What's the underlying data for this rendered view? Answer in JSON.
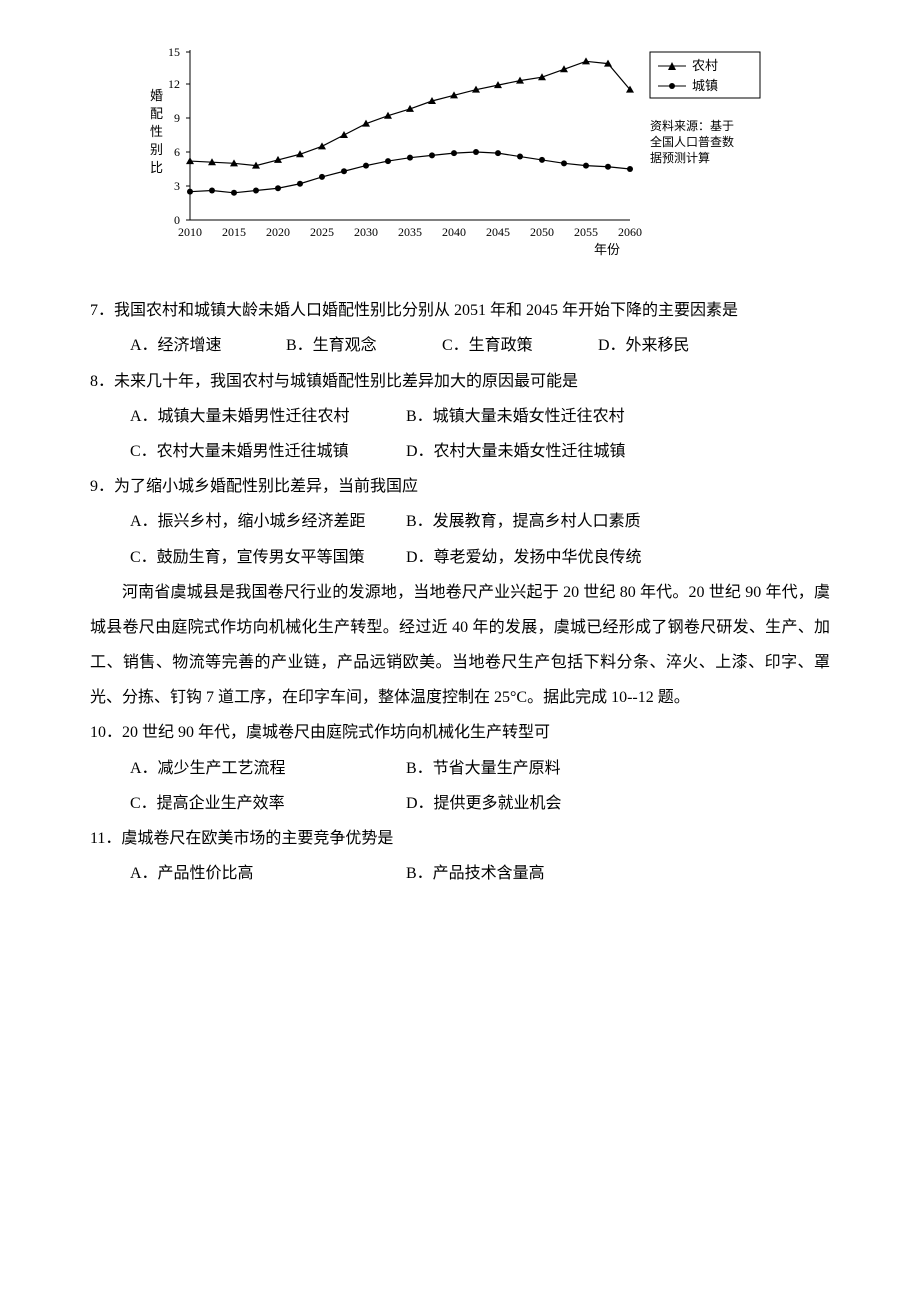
{
  "chart": {
    "type": "line",
    "y_axis_label": "婚配性别比",
    "x_axis_label": "年份",
    "x_ticks": [
      "2010",
      "2015",
      "2020",
      "2025",
      "2030",
      "2035",
      "2040",
      "2045",
      "2050",
      "2055",
      "2060"
    ],
    "y_ticks": [
      0,
      3,
      6,
      9,
      12,
      15
    ],
    "ylim": [
      0,
      15
    ],
    "xlim": [
      2010,
      2060
    ],
    "legend": {
      "rural": "农村",
      "urban": "城镇"
    },
    "source_note_l1": "资料来源：基于",
    "source_note_l2": "全国人口普查数",
    "source_note_l3": "据预测计算",
    "rural": {
      "marker": "triangle",
      "color": "#000000",
      "values": [
        5.2,
        5.1,
        5.0,
        4.8,
        5.3,
        5.8,
        6.5,
        7.5,
        8.5,
        9.2,
        9.8,
        10.5,
        11.0,
        11.5,
        11.9,
        12.3,
        12.6,
        13.3,
        14.0,
        13.8,
        11.5
      ]
    },
    "urban": {
      "marker": "circle",
      "color": "#000000",
      "values": [
        2.5,
        2.6,
        2.4,
        2.6,
        2.8,
        3.2,
        3.8,
        4.3,
        4.8,
        5.2,
        5.5,
        5.7,
        5.9,
        6.0,
        5.9,
        5.6,
        5.3,
        5.0,
        4.8,
        4.7,
        4.5
      ]
    },
    "background_color": "#ffffff",
    "axis_color": "#000000",
    "label_fontsize": 12
  },
  "q7": {
    "stem": "7．我国农村和城镇大龄未婚人口婚配性别比分别从 2051 年和 2045 年开始下降的主要因素是",
    "A": "A．经济增速",
    "B": "B．生育观念",
    "C": "C．生育政策",
    "D": "D．外来移民"
  },
  "q8": {
    "stem": "8．未来几十年，我国农村与城镇婚配性别比差异加大的原因最可能是",
    "A": "A．城镇大量未婚男性迁往农村",
    "B": "B．城镇大量未婚女性迁往农村",
    "C": "C．农村大量未婚男性迁往城镇",
    "D": "D．农村大量未婚女性迁往城镇"
  },
  "q9": {
    "stem": "9．为了缩小城乡婚配性别比差异，当前我国应",
    "A": "A．振兴乡村，缩小城乡经济差距",
    "B": "B．发展教育，提高乡村人口素质",
    "C": "C．鼓励生育，宣传男女平等国策",
    "D": "D．尊老爱幼，发扬中华优良传统"
  },
  "passage": "河南省虞城县是我国卷尺行业的发源地，当地卷尺产业兴起于 20 世纪 80 年代。20 世纪 90 年代，虞城县卷尺由庭院式作坊向机械化生产转型。经过近 40 年的发展，虞城已经形成了钢卷尺研发、生产、加工、销售、物流等完善的产业链，产品远销欧美。当地卷尺生产包括下料分条、淬火、上漆、印字、罩光、分拣、钉钩 7 道工序，在印字车间，整体温度控制在 25°C。据此完成 10--12 题。",
  "q10": {
    "stem": "10．20 世纪 90 年代，虞城卷尺由庭院式作坊向机械化生产转型可",
    "A": "A．减少生产工艺流程",
    "B": "B．节省大量生产原料",
    "C": "C．提高企业生产效率",
    "D": "D．提供更多就业机会"
  },
  "q11": {
    "stem": "11．虞城卷尺在欧美市场的主要竞争优势是",
    "A": "A．产品性价比高",
    "B": "B．产品技术含量高"
  }
}
